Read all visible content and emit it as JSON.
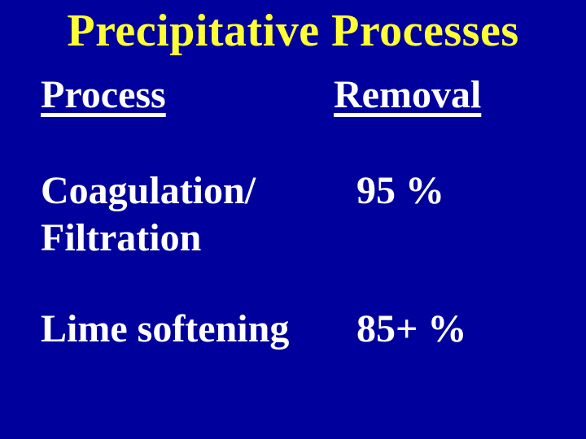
{
  "slide": {
    "title": "Precipitative Processes",
    "columns": {
      "process": "Process",
      "removal": "Removal"
    },
    "rows": [
      {
        "process": "Coagulation/\nFiltration",
        "removal": "95 %"
      },
      {
        "process": "Lime softening",
        "removal": "85+ %"
      }
    ],
    "colors": {
      "background": "#00009C",
      "title_text": "#FFFF33",
      "body_text": "#FFFFFF"
    }
  }
}
